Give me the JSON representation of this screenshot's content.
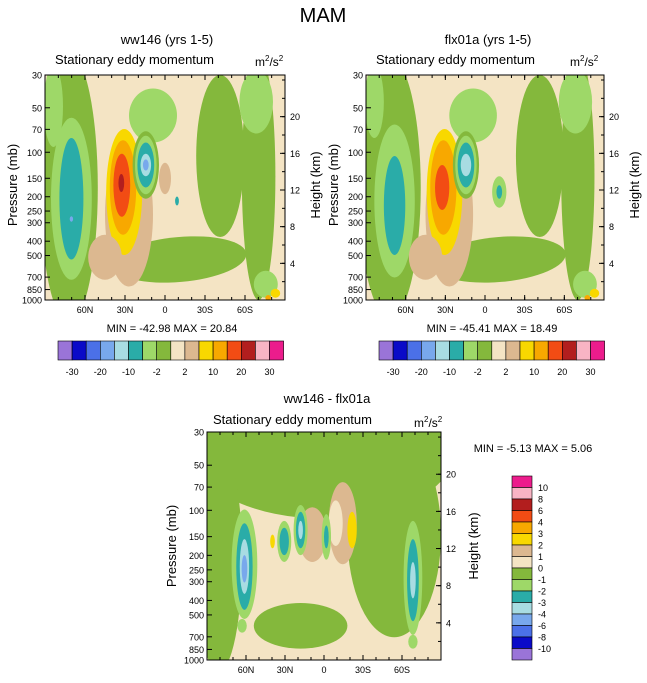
{
  "figure_title": "MAM",
  "colors": {
    "level_colors": [
      "#9a74d8",
      "#0a0ac8",
      "#4b70e8",
      "#78a8ec",
      "#a8dce2",
      "#2aaca8",
      "#9ed868",
      "#84b83c",
      "#f4e4c4",
      "#dcb890",
      "#f8d800",
      "#f8a800",
      "#f24c14",
      "#b21e1e",
      "#f8b4c4",
      "#ec1c8c"
    ],
    "frame": "#000000"
  },
  "chart_data": [
    {
      "type": "heatmap",
      "id": "ww146",
      "title": "ww146 (yrs 1-5)",
      "subtitle": "Stationary eddy momentum",
      "units": "m²/s²",
      "units_base": "m",
      "units_exp": "2",
      "units_sep": "/s",
      "units_exp2": "2",
      "ylabel": "Pressure (mb)",
      "ylabel_right": "Height (km)",
      "yticks": [
        "30",
        "50",
        "70",
        "100",
        "150",
        "200",
        "250",
        "300",
        "400",
        "500",
        "700",
        "850",
        "1000"
      ],
      "yticks_right": [
        "20",
        "16",
        "12",
        "8",
        "4"
      ],
      "xticks": [
        "60N",
        "30N",
        "0",
        "30S",
        "60S"
      ],
      "ylim_mb": [
        30,
        1000
      ],
      "xlim_deg": [
        90,
        -90
      ],
      "stats": "MIN = -42.98   MAX =  20.84",
      "min": -42.98,
      "max": 20.84,
      "features": [
        {
          "lat": 61,
          "p": 210,
          "value": -12
        },
        {
          "lat": 28,
          "p": 190,
          "value": 20.8
        },
        {
          "lat": 10,
          "p": 150,
          "value": -6
        },
        {
          "lat": -22,
          "p": 210,
          "value": -3
        }
      ]
    },
    {
      "type": "heatmap",
      "id": "flx01a",
      "title": "flx01a (yrs 1-5)",
      "subtitle": "Stationary eddy momentum",
      "units": "m²/s²",
      "units_base": "m",
      "units_exp": "2",
      "units_sep": "/s",
      "units_exp2": "2",
      "ylabel": "Pressure (mb)",
      "ylabel_right": "Height (km)",
      "yticks": [
        "30",
        "50",
        "70",
        "100",
        "150",
        "200",
        "250",
        "300",
        "400",
        "500",
        "700",
        "850",
        "1000"
      ],
      "yticks_right": [
        "20",
        "16",
        "12",
        "8",
        "4"
      ],
      "xticks": [
        "60N",
        "30N",
        "0",
        "30S",
        "60S"
      ],
      "ylim_mb": [
        30,
        1000
      ],
      "xlim_deg": [
        90,
        -90
      ],
      "stats": "MIN = -45.41   MAX =  18.49",
      "min": -45.41,
      "max": 18.49,
      "features": [
        {
          "lat": 62,
          "p": 210,
          "value": -12
        },
        {
          "lat": 28,
          "p": 190,
          "value": 18.5
        },
        {
          "lat": 10,
          "p": 150,
          "value": -5
        },
        {
          "lat": -22,
          "p": 200,
          "value": -3
        }
      ]
    },
    {
      "type": "heatmap",
      "id": "diff",
      "title": "ww146 - flx01a",
      "subtitle": "Stationary eddy momentum",
      "units": "m²/s²",
      "units_base": "m",
      "units_exp": "2",
      "units_sep": "/s",
      "units_exp2": "2",
      "ylabel": "Pressure (mb)",
      "ylabel_right": "Height (km)",
      "yticks": [
        "30",
        "50",
        "70",
        "100",
        "150",
        "200",
        "250",
        "300",
        "400",
        "500",
        "700",
        "850",
        "1000"
      ],
      "yticks_right": [
        "20",
        "16",
        "12",
        "8",
        "4"
      ],
      "xticks": [
        "60N",
        "30N",
        "0",
        "30S",
        "60S"
      ],
      "ylim_mb": [
        30,
        1000
      ],
      "xlim_deg": [
        90,
        -90
      ],
      "stats": "MIN =  -5.13   MAX =    5.06",
      "min": -5.13,
      "max": 5.06,
      "features": [
        {
          "lat": 60,
          "p": 230,
          "value": -4
        },
        {
          "lat": 10,
          "p": 140,
          "value": -3
        },
        {
          "lat": -68,
          "p": 240,
          "value": -3
        },
        {
          "lat": -25,
          "p": 170,
          "value": 2
        }
      ]
    }
  ],
  "colorbar_top": {
    "orientation": "horizontal",
    "labels": [
      "-30",
      "-20",
      "-10",
      "-2",
      "2",
      "10",
      "20",
      "30"
    ],
    "levels": [
      -40,
      -30,
      -25,
      -20,
      -15,
      -10,
      -5,
      -2,
      0,
      2,
      5,
      10,
      15,
      20,
      25,
      30
    ]
  },
  "colorbar_right": {
    "orientation": "vertical",
    "labels": [
      "10",
      "8",
      "6",
      "4",
      "3",
      "2",
      "1",
      "0",
      "-1",
      "-2",
      "-3",
      "-4",
      "-6",
      "-8",
      "-10"
    ]
  }
}
